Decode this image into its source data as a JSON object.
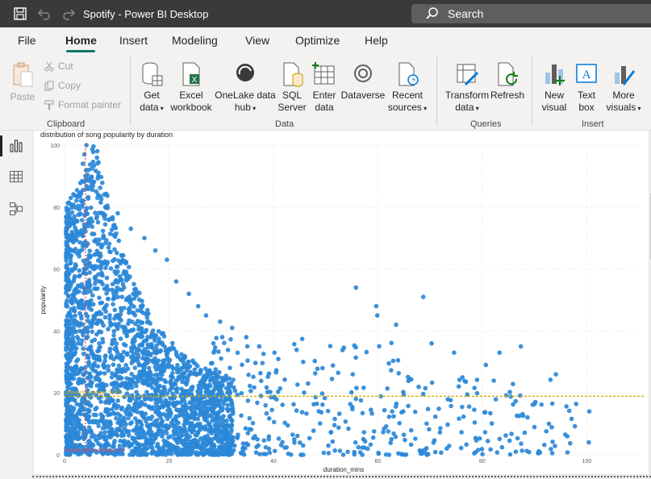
{
  "window": {
    "title": "Spotify - Power BI Desktop",
    "search_placeholder": "Search"
  },
  "menu": {
    "items": [
      "File",
      "Home",
      "Insert",
      "Modeling",
      "View",
      "Optimize",
      "Help"
    ],
    "active": "Home"
  },
  "ribbon": {
    "clipboard": {
      "paste": "Paste",
      "cut": "Cut",
      "copy": "Copy",
      "format_painter": "Format painter",
      "group_label": "Clipboard"
    },
    "data": {
      "get_data": [
        "Get",
        "data"
      ],
      "excel_workbook": [
        "Excel",
        "workbook"
      ],
      "onelake": [
        "OneLake data",
        "hub"
      ],
      "sql_server": [
        "SQL",
        "Server"
      ],
      "enter_data": [
        "Enter",
        "data"
      ],
      "dataverse": "Dataverse",
      "recent_sources": [
        "Recent",
        "sources"
      ],
      "group_label": "Data"
    },
    "queries": {
      "transform_data": [
        "Transform",
        "data"
      ],
      "refresh": "Refresh",
      "group_label": "Queries"
    },
    "insert": {
      "new_visual": [
        "New",
        "visual"
      ],
      "text_box": [
        "Text",
        "box"
      ],
      "more_visuals": [
        "More",
        "visuals"
      ],
      "group_label": "Insert"
    }
  },
  "colors": {
    "titlebar": "#3b3a39",
    "accent": "#117865",
    "dots": "#2b88d8",
    "avg_line": "#d6a800",
    "median_line": "#e8434d"
  },
  "chart_data": {
    "type": "scatter",
    "title": "distribution of song popularity by duration",
    "xlabel": "duration_mins",
    "ylabel": "popularity",
    "xlim": [
      0,
      110
    ],
    "ylim": [
      0,
      100
    ],
    "x_ticks": [
      0,
      20,
      40,
      60,
      80,
      100
    ],
    "y_ticks": [
      0,
      20,
      40,
      60,
      80,
      100
    ],
    "reference_lines": [
      {
        "axis": "y",
        "value": 18.9,
        "label": "popularity average: 18.95",
        "style": "dashed"
      },
      {
        "axis": "x",
        "value": 4,
        "label": "duration_mins average: 4.0",
        "style": "dashed"
      }
    ],
    "sample_points": [
      [
        4.2,
        100
      ],
      [
        3.8,
        97
      ],
      [
        3.5,
        94
      ],
      [
        4.6,
        92
      ],
      [
        5.4,
        88
      ],
      [
        6.3,
        83
      ],
      [
        7.8,
        80
      ],
      [
        10.2,
        78
      ],
      [
        12.7,
        73
      ],
      [
        15.3,
        70
      ],
      [
        17.4,
        66
      ],
      [
        19.6,
        63
      ],
      [
        21.4,
        56
      ],
      [
        23.8,
        52
      ],
      [
        25.6,
        48
      ],
      [
        27.1,
        45
      ],
      [
        29.8,
        43
      ],
      [
        32.1,
        41
      ],
      [
        34.8,
        38
      ],
      [
        37.3,
        35
      ],
      [
        40.2,
        33
      ],
      [
        45.7,
        30
      ],
      [
        49.4,
        28
      ],
      [
        55.2,
        26
      ],
      [
        55.8,
        54
      ],
      [
        59.7,
        48
      ],
      [
        59.9,
        45
      ],
      [
        63.5,
        42
      ],
      [
        68.7,
        51
      ],
      [
        70.3,
        36
      ],
      [
        74.6,
        33
      ],
      [
        80.7,
        29
      ],
      [
        83.3,
        33
      ],
      [
        87.4,
        35
      ],
      [
        94.1,
        26
      ],
      [
        96.3,
        6
      ],
      [
        100.5,
        14
      ],
      [
        100.4,
        4
      ]
    ]
  }
}
